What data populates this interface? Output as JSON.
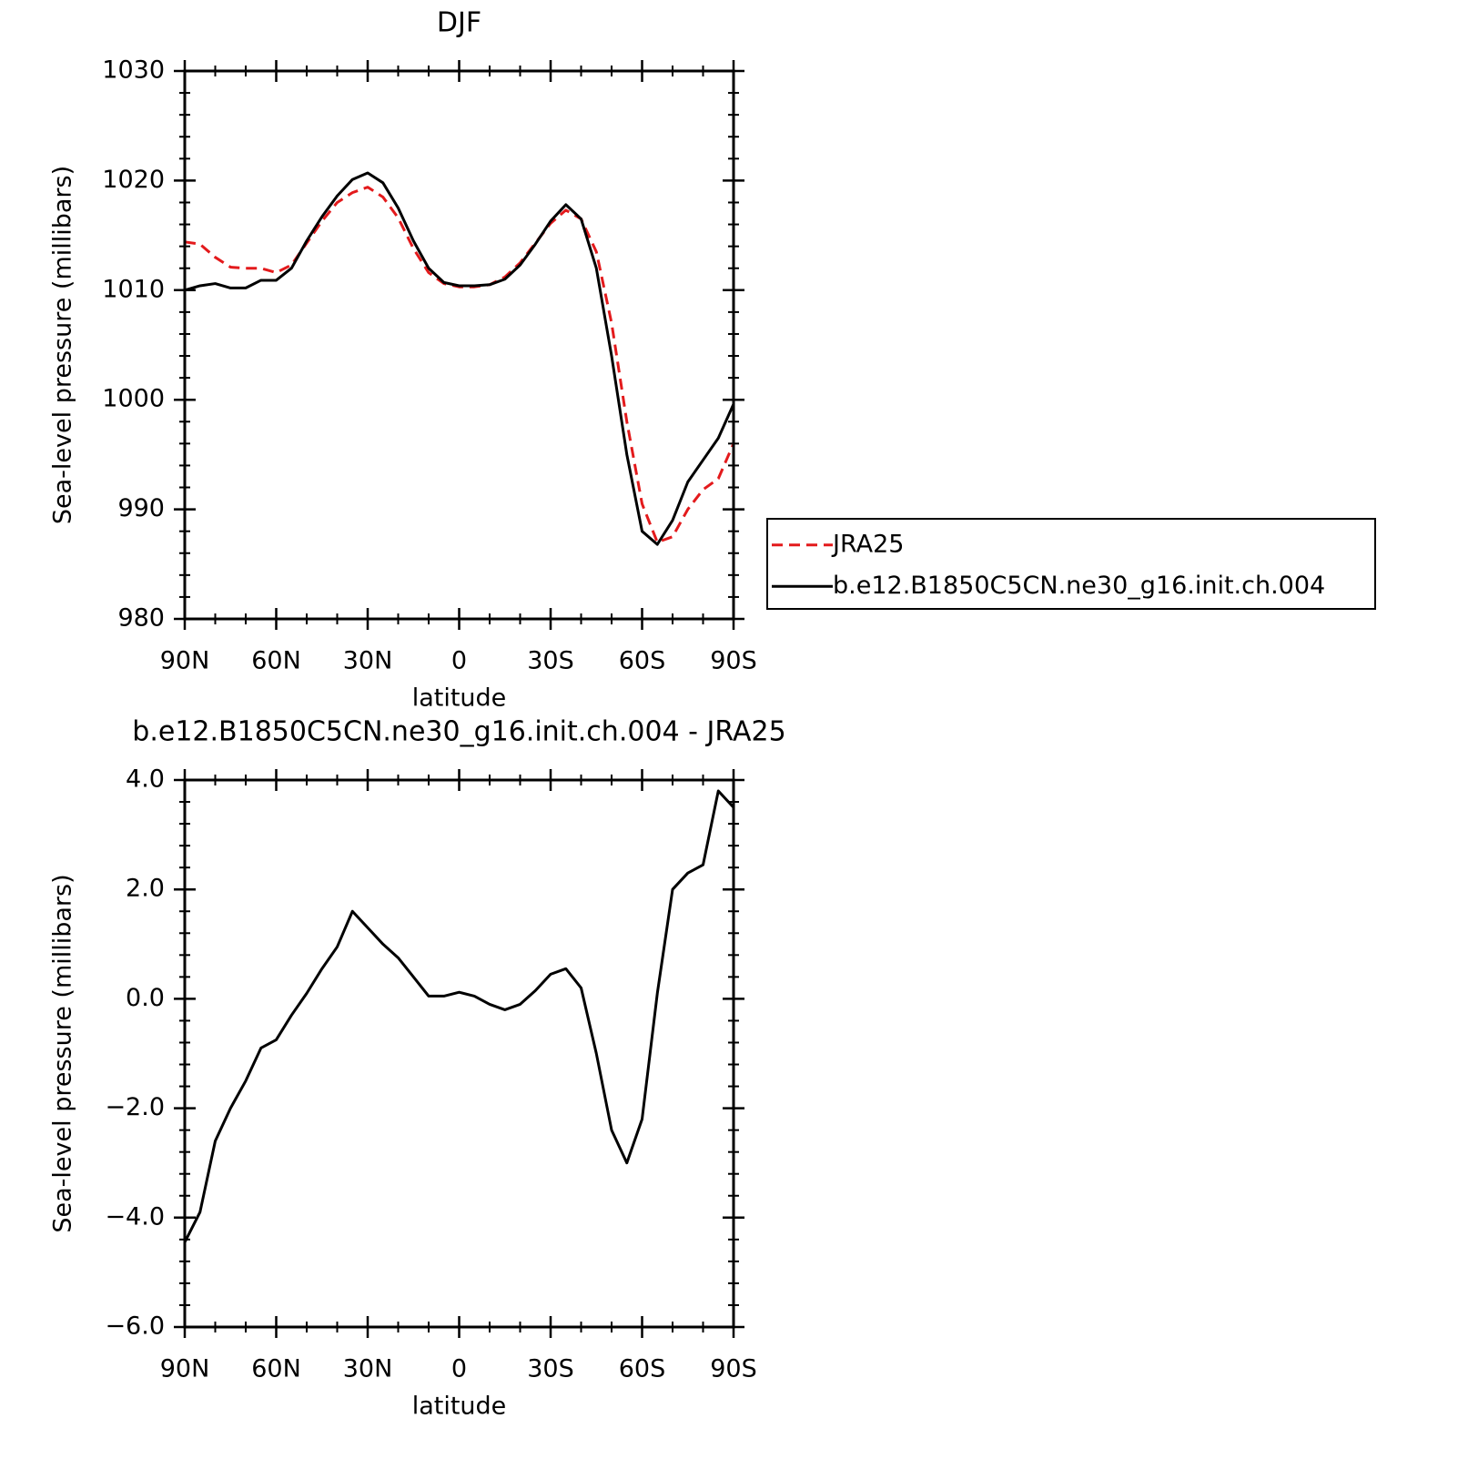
{
  "chart_data": [
    {
      "type": "line",
      "title": "DJF",
      "xlabel": "latitude",
      "ylabel": "Sea-level pressure (millibars)",
      "x": [
        90,
        85,
        80,
        75,
        70,
        65,
        60,
        55,
        50,
        45,
        40,
        35,
        30,
        25,
        20,
        15,
        10,
        5,
        0,
        -5,
        -10,
        -15,
        -20,
        -25,
        -30,
        -35,
        -40,
        -45,
        -50,
        -55,
        -60,
        -65,
        -70,
        -75,
        -80,
        -85,
        -90
      ],
      "xlim": [
        90,
        -90
      ],
      "xticks": [
        {
          "value": 90,
          "label": "90N"
        },
        {
          "value": 60,
          "label": "60N"
        },
        {
          "value": 30,
          "label": "30N"
        },
        0,
        {
          "value": -30,
          "label": "30S"
        },
        {
          "value": -60,
          "label": "60S"
        },
        {
          "value": -90,
          "label": "90S"
        }
      ],
      "xminorticks": [
        80,
        70,
        50,
        40,
        20,
        10,
        -10,
        -20,
        -40,
        -50,
        -70,
        -80
      ],
      "ylim": [
        980,
        1030
      ],
      "yticks": [
        980,
        990,
        1000,
        1010,
        1020,
        1030
      ],
      "yminorticks": [
        982,
        984,
        986,
        988,
        992,
        994,
        996,
        998,
        1002,
        1004,
        1006,
        1008,
        1012,
        1014,
        1016,
        1018,
        1022,
        1024,
        1026,
        1028
      ],
      "legend": "right",
      "series": [
        {
          "name": "JRA25",
          "color": "#e31a1c",
          "style": "dashed",
          "values": [
            1014.4,
            1014.2,
            1013.0,
            1012.1,
            1012.0,
            1012.0,
            1011.6,
            1012.3,
            1014.3,
            1016.3,
            1018.0,
            1018.9,
            1019.4,
            1018.5,
            1016.6,
            1013.8,
            1011.6,
            1010.6,
            1010.3,
            1010.3,
            1010.5,
            1011.2,
            1012.5,
            1014.3,
            1016.1,
            1017.3,
            1016.5,
            1013.5,
            1007.0,
            998.0,
            990.5,
            987.0,
            987.5,
            990.0,
            991.8,
            992.8,
            996.0
          ]
        },
        {
          "name": "b.e12.B1850C5CN.ne30_g16.init.ch.004",
          "color": "#000000",
          "style": "solid",
          "values": [
            1010.0,
            1010.4,
            1010.6,
            1010.2,
            1010.2,
            1010.9,
            1010.9,
            1012.0,
            1014.5,
            1016.7,
            1018.6,
            1020.1,
            1020.7,
            1019.8,
            1017.5,
            1014.5,
            1012.0,
            1010.7,
            1010.4,
            1010.4,
            1010.5,
            1011.0,
            1012.3,
            1014.2,
            1016.3,
            1017.8,
            1016.5,
            1012.0,
            1004.0,
            995.0,
            988.0,
            986.8,
            989.0,
            992.5,
            994.5,
            996.5,
            999.6
          ]
        }
      ]
    },
    {
      "type": "line",
      "title": "b.e12.B1850C5CN.ne30_g16.init.ch.004 - JRA25",
      "xlabel": "latitude",
      "ylabel": "Sea-level pressure (millibars)",
      "x": [
        90,
        85,
        80,
        75,
        70,
        65,
        60,
        55,
        50,
        45,
        40,
        35,
        30,
        25,
        20,
        15,
        10,
        5,
        0,
        -5,
        -10,
        -15,
        -20,
        -25,
        -30,
        -35,
        -40,
        -45,
        -50,
        -55,
        -60,
        -65,
        -70,
        -75,
        -80,
        -85,
        -90
      ],
      "xlim": [
        90,
        -90
      ],
      "xticks": [
        {
          "value": 90,
          "label": "90N"
        },
        {
          "value": 60,
          "label": "60N"
        },
        {
          "value": 30,
          "label": "30N"
        },
        0,
        {
          "value": -30,
          "label": "30S"
        },
        {
          "value": -60,
          "label": "60S"
        },
        {
          "value": -90,
          "label": "90S"
        }
      ],
      "xminorticks": [
        80,
        70,
        50,
        40,
        20,
        10,
        -10,
        -20,
        -40,
        -50,
        -70,
        -80
      ],
      "ylim": [
        -6,
        4
      ],
      "yticks": [
        {
          "value": -6,
          "label": "−6.0"
        },
        {
          "value": -4,
          "label": "−4.0"
        },
        {
          "value": -2,
          "label": "−2.0"
        },
        {
          "value": 0,
          "label": "0.0"
        },
        {
          "value": 2,
          "label": "2.0"
        },
        {
          "value": 4,
          "label": "4.0"
        }
      ],
      "yminorticks": [
        -5.6,
        -5.2,
        -4.8,
        -4.4,
        -3.6,
        -3.2,
        -2.8,
        -2.4,
        -1.6,
        -1.2,
        -0.8,
        -0.4,
        0.4,
        0.8,
        1.2,
        1.6,
        2.4,
        2.8,
        3.2,
        3.6
      ],
      "color": "#000000",
      "values": [
        -4.45,
        -3.9,
        -2.6,
        -2.0,
        -1.5,
        -0.9,
        -0.75,
        -0.3,
        0.1,
        0.55,
        0.95,
        1.6,
        1.3,
        1.0,
        0.75,
        0.4,
        0.05,
        0.05,
        0.12,
        0.05,
        -0.1,
        -0.2,
        -0.1,
        0.15,
        0.45,
        0.55,
        0.2,
        -1.0,
        -2.4,
        -3.0,
        -2.2,
        0.1,
        2.0,
        2.3,
        2.45,
        3.8,
        3.5
      ]
    }
  ]
}
